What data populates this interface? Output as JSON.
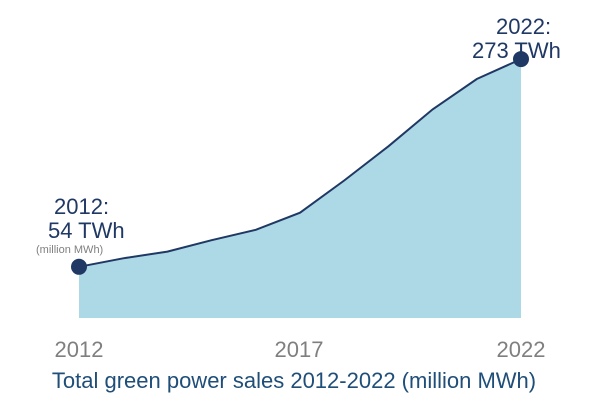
{
  "chart_data": {
    "type": "area",
    "x": [
      2012,
      2013,
      2014,
      2015,
      2016,
      2017,
      2018,
      2019,
      2020,
      2021,
      2022
    ],
    "values": [
      54,
      63,
      70,
      82,
      93,
      111,
      145,
      181,
      220,
      252,
      273
    ],
    "xticks": [
      "2012",
      "2017",
      "2022"
    ],
    "xlabel": "Total green power sales 2012-2022 (million MWh)",
    "ylabel": "",
    "ylim": [
      0,
      310
    ],
    "grid": false,
    "colors": {
      "fill": "#add8e6",
      "line": "#1f3864",
      "marker": "#1f3864"
    },
    "annotations": {
      "start": {
        "line1": "2012:",
        "line2": "54 TWh",
        "unit": "(million MWh)"
      },
      "end": {
        "line1": "2022:",
        "line2": "273 TWh"
      }
    }
  }
}
